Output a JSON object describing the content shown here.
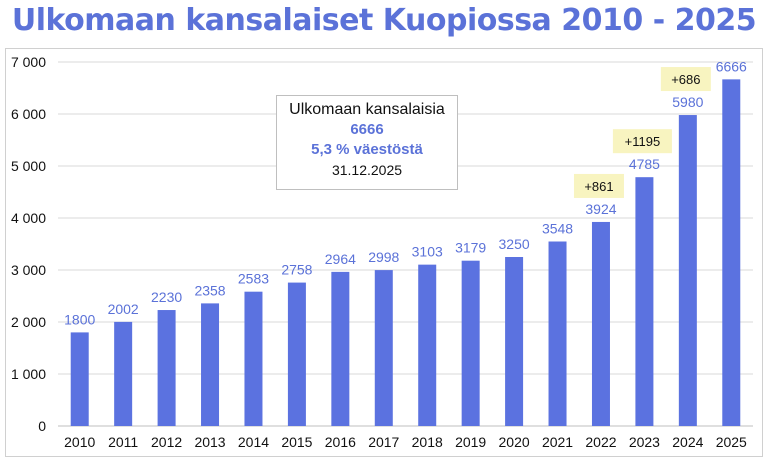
{
  "chart_data": {
    "type": "bar",
    "title": "Ulkomaan kansalaiset Kuopiossa 2010 - 2025",
    "categories": [
      "2010",
      "2011",
      "2012",
      "2013",
      "2014",
      "2015",
      "2016",
      "2017",
      "2018",
      "2019",
      "2020",
      "2021",
      "2022",
      "2023",
      "2024",
      "2025"
    ],
    "values": [
      1800,
      2002,
      2230,
      2358,
      2583,
      2758,
      2964,
      2998,
      3103,
      3179,
      3250,
      3548,
      3924,
      4785,
      5980,
      6666
    ],
    "ylim": [
      0,
      7000
    ],
    "yticks": [
      0,
      1000,
      2000,
      3000,
      4000,
      5000,
      6000,
      7000
    ],
    "ytick_labels": [
      "0",
      "1 000",
      "2 000",
      "3 000",
      "4 000",
      "5 000",
      "6 000",
      "7 000"
    ],
    "grid": true,
    "bar_color": "#5b72e0",
    "annotations": [
      {
        "category": "2022",
        "text": "+861"
      },
      {
        "category": "2023",
        "text": "+1195"
      },
      {
        "category": "2024",
        "text": "+686"
      }
    ],
    "info_box": {
      "line1": "Ulkomaan kansalaisia",
      "line2": "6666",
      "line3": "5,3 % väestöstä",
      "line4": "31.12.2025"
    }
  }
}
